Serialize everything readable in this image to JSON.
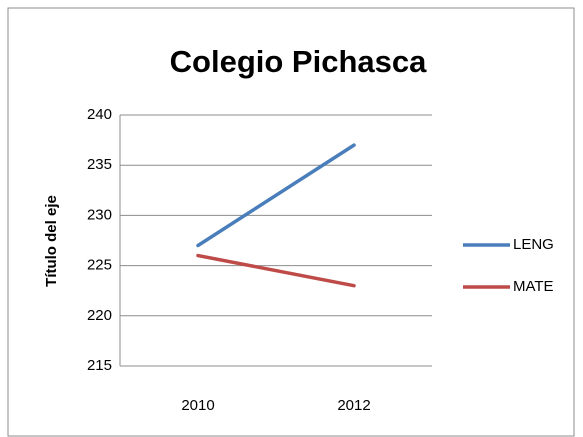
{
  "chart_data": {
    "type": "line",
    "title": "Colegio Pichasca",
    "y_label": "Título del eje",
    "categories": [
      "2010",
      "2012"
    ],
    "series": [
      {
        "name": "LENG",
        "color": "#4a7ebb",
        "values": [
          227,
          237
        ]
      },
      {
        "name": "MATE",
        "color": "#be4b48",
        "values": [
          226,
          223
        ]
      }
    ],
    "ylim": [
      215,
      240
    ],
    "yticks": [
      215,
      220,
      225,
      230,
      235,
      240
    ],
    "grid": true,
    "legend": "right"
  }
}
